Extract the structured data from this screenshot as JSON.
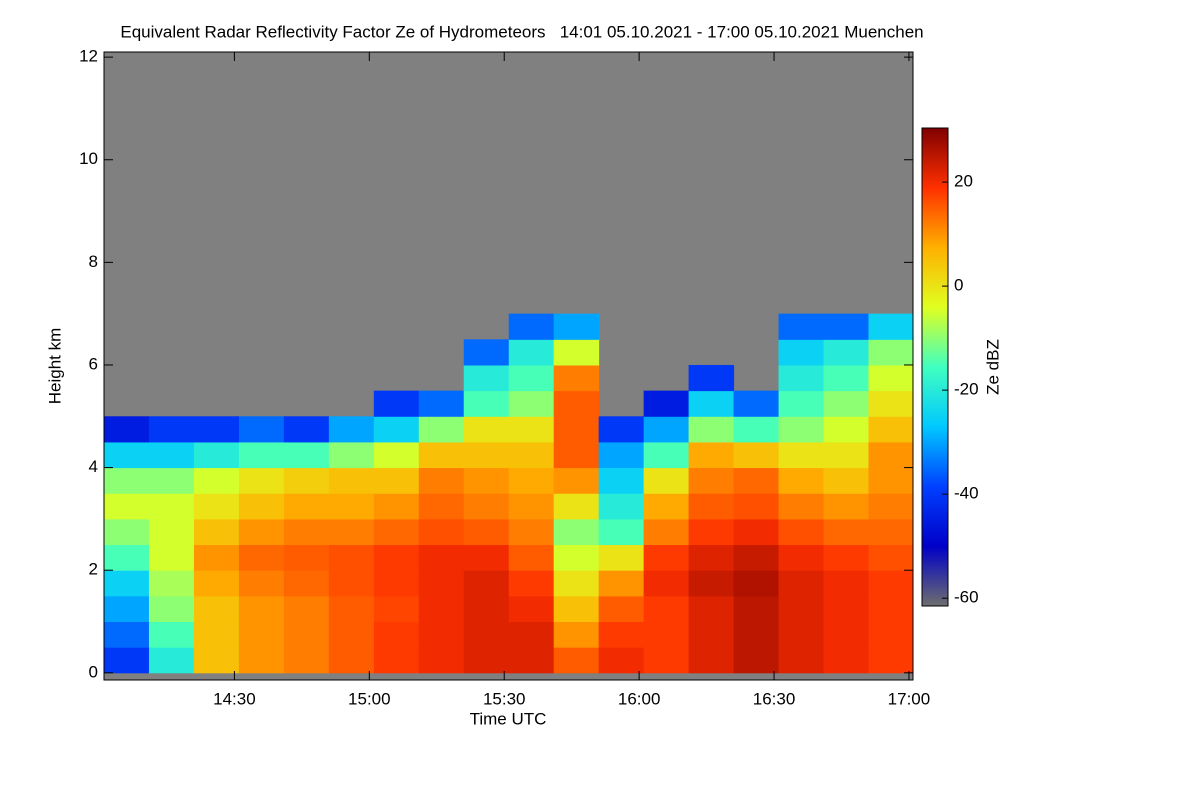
{
  "chart_data": {
    "type": "heatmap",
    "title": "Equivalent Radar Reflectivity Factor Ze of Hydrometeors   14:01 05.10.2021 - 17:00 05.10.2021 Muenchen",
    "x_label": "Time UTC",
    "y_label": "Height km",
    "colorbar_label": "Ze dBZ",
    "background": "#808080",
    "x": [
      14.0167,
      14.1833,
      14.35,
      14.5167,
      14.6833,
      14.85,
      15.0167,
      15.1833,
      15.35,
      15.5167,
      15.6833,
      15.85,
      16.0167,
      16.1833,
      16.35,
      16.5167,
      16.6833,
      16.85
    ],
    "y": [
      0,
      0.5,
      1,
      1.5,
      2,
      2.5,
      3,
      3.5,
      4,
      4.5,
      5,
      5.5,
      6,
      6.5
    ],
    "values": [
      [
        -40,
        -20,
        5,
        10,
        12,
        15,
        18,
        20,
        22,
        22,
        15,
        20,
        18,
        22,
        25,
        22,
        20,
        18
      ],
      [
        -35,
        -15,
        5,
        10,
        12,
        15,
        18,
        20,
        22,
        22,
        10,
        18,
        18,
        22,
        25,
        22,
        20,
        18
      ],
      [
        -30,
        -10,
        5,
        10,
        12,
        15,
        17,
        20,
        22,
        20,
        5,
        15,
        18,
        22,
        25,
        22,
        20,
        18
      ],
      [
        -25,
        -8,
        8,
        12,
        14,
        16,
        18,
        20,
        22,
        18,
        0,
        10,
        20,
        24,
        26,
        22,
        20,
        18
      ],
      [
        -15,
        -5,
        10,
        14,
        15,
        16,
        18,
        20,
        20,
        15,
        -5,
        0,
        18,
        22,
        24,
        20,
        18,
        16
      ],
      [
        -10,
        -5,
        5,
        10,
        12,
        12,
        14,
        16,
        15,
        12,
        -10,
        -15,
        12,
        18,
        20,
        16,
        14,
        14
      ],
      [
        -5,
        -5,
        0,
        5,
        8,
        8,
        10,
        14,
        12,
        10,
        0,
        -20,
        8,
        15,
        16,
        12,
        10,
        12
      ],
      [
        -10,
        -10,
        -5,
        0,
        3,
        5,
        5,
        12,
        10,
        8,
        10,
        -25,
        0,
        12,
        14,
        8,
        5,
        10
      ],
      [
        -25,
        -25,
        -20,
        -15,
        -15,
        -10,
        -5,
        5,
        5,
        5,
        15,
        -30,
        -15,
        8,
        5,
        0,
        0,
        10
      ],
      [
        -45,
        -40,
        -40,
        -35,
        -40,
        -30,
        -25,
        -10,
        0,
        0,
        15,
        -40,
        -30,
        -10,
        -15,
        -10,
        -5,
        5
      ],
      [
        null,
        null,
        null,
        null,
        null,
        null,
        -40,
        -35,
        -15,
        -10,
        15,
        null,
        -45,
        -25,
        -35,
        -15,
        -10,
        0
      ],
      [
        null,
        null,
        null,
        null,
        null,
        null,
        null,
        null,
        -20,
        -15,
        12,
        null,
        null,
        -40,
        null,
        -20,
        -15,
        -5
      ],
      [
        null,
        null,
        null,
        null,
        null,
        null,
        null,
        null,
        -35,
        -20,
        -5,
        null,
        null,
        null,
        null,
        -25,
        -20,
        -10
      ],
      [
        null,
        null,
        null,
        null,
        null,
        null,
        null,
        null,
        null,
        -35,
        -30,
        null,
        null,
        null,
        null,
        -35,
        -35,
        -25
      ]
    ],
    "xlim": [
      14.0167,
      17.015
    ],
    "xticks": [
      {
        "value": 14.5,
        "label": "14:30"
      },
      {
        "value": 15,
        "label": "15:00"
      },
      {
        "value": 15.5,
        "label": "15:30"
      },
      {
        "value": 16,
        "label": "16:00"
      },
      {
        "value": 16.5,
        "label": "16:30"
      },
      {
        "value": 17,
        "label": "17:00"
      }
    ],
    "ylim": [
      -0.14,
      12.1
    ],
    "yticks": [
      0,
      2,
      4,
      6,
      8,
      10,
      12
    ],
    "clim": [
      -61.5,
      30.4
    ],
    "cticks": [
      -60,
      -40,
      -20,
      0,
      20
    ],
    "colormap": [
      "#6e6e6e",
      "#0000c8",
      "#0040ff",
      "#00c8ff",
      "#40ffc0",
      "#e0ff20",
      "#ffb000",
      "#ff3000",
      "#800000"
    ]
  }
}
